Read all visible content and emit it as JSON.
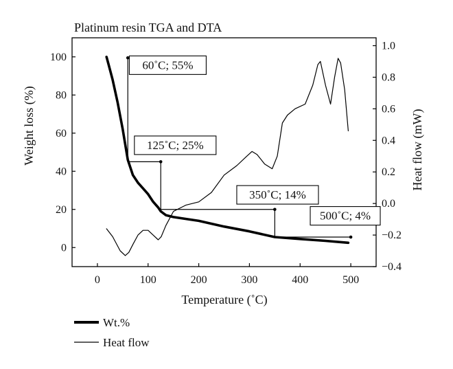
{
  "chart_data": {
    "type": "line",
    "title": "Platinum resin TGA and DTA",
    "xlabel": "Temperature (˚C)",
    "ylabel_left": "Weight loss (%)",
    "ylabel_right": "Heat flow (mW)",
    "xlim": [
      -50,
      550
    ],
    "ylim_left": [
      -10,
      110
    ],
    "ylim_right": [
      -0.4,
      1.05
    ],
    "x_ticks": [
      0,
      100,
      200,
      300,
      400,
      500
    ],
    "y_left_ticks": [
      0,
      20,
      40,
      60,
      80,
      100
    ],
    "y_right_ticks": [
      -0.4,
      -0.2,
      0.0,
      0.2,
      0.4,
      0.6,
      0.8,
      1.0
    ],
    "y_right_tick_labels": [
      "−0.4",
      "−0.2",
      "0.0",
      "0.2",
      "0.4",
      "0.6",
      "0.8",
      "1.0"
    ],
    "grid": false,
    "legend_position": "bottom-left",
    "series": [
      {
        "name": "Wt.%",
        "axis": "left",
        "style": "thick",
        "x": [
          18,
          22,
          30,
          40,
          50,
          55,
          60,
          65,
          70,
          80,
          90,
          100,
          110,
          120,
          125,
          135,
          150,
          175,
          200,
          250,
          300,
          350,
          400,
          450,
          495
        ],
        "y": [
          100,
          96,
          88,
          76,
          62,
          54,
          46,
          42,
          38,
          34,
          31,
          28,
          24,
          21,
          19,
          17,
          16,
          15,
          14,
          11,
          8.5,
          5.5,
          4.5,
          3.5,
          2.5
        ]
      },
      {
        "name": "Heat flow",
        "axis": "right",
        "style": "thin",
        "x": [
          18,
          30,
          45,
          55,
          62,
          70,
          80,
          90,
          100,
          110,
          120,
          126,
          135,
          150,
          175,
          200,
          225,
          250,
          275,
          295,
          305,
          315,
          330,
          345,
          355,
          365,
          375,
          390,
          410,
          425,
          435,
          440,
          450,
          460,
          468,
          475,
          480,
          488,
          495
        ],
        "y": [
          -0.16,
          -0.21,
          -0.3,
          -0.33,
          -0.31,
          -0.26,
          -0.2,
          -0.17,
          -0.17,
          -0.2,
          -0.23,
          -0.21,
          -0.14,
          -0.05,
          -0.01,
          0.01,
          0.07,
          0.18,
          0.24,
          0.3,
          0.33,
          0.31,
          0.25,
          0.22,
          0.3,
          0.51,
          0.56,
          0.6,
          0.63,
          0.75,
          0.88,
          0.9,
          0.75,
          0.63,
          0.8,
          0.92,
          0.89,
          0.72,
          0.46
        ]
      }
    ],
    "annotations": [
      {
        "text": "60˚C; 55%",
        "x": 60,
        "y": 55
      },
      {
        "text": "125˚C; 25%",
        "x": 125,
        "y": 25
      },
      {
        "text": "350˚C; 14%",
        "x": 350,
        "y": 14
      },
      {
        "text": "500˚C; 4%",
        "x": 500,
        "y": 4
      }
    ]
  }
}
